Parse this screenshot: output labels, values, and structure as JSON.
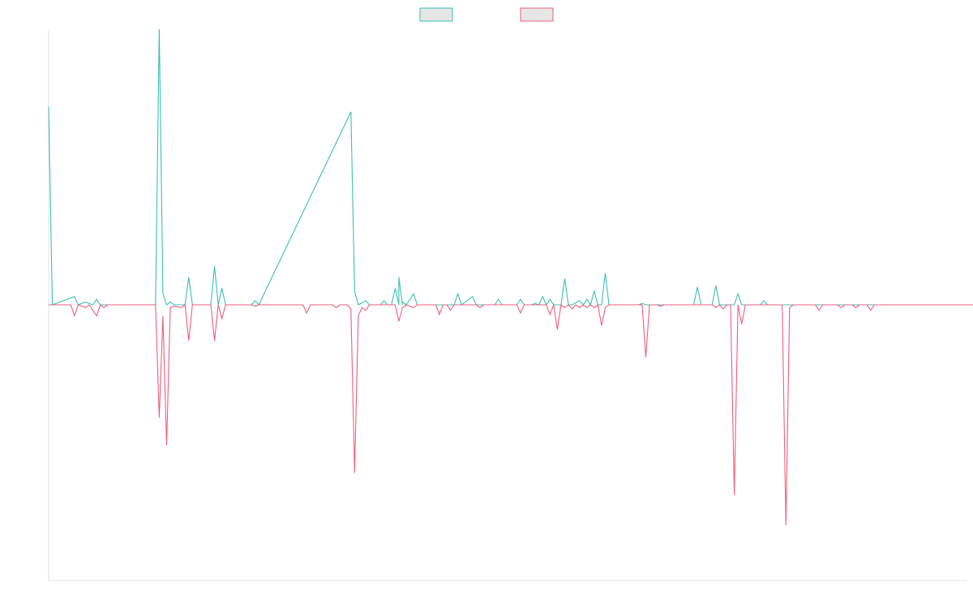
{
  "chart_data": {
    "type": "line",
    "title": "",
    "xlabel": "",
    "ylabel": "",
    "x_count": 250,
    "ylim": [
      -100,
      100
    ],
    "grid": false,
    "legend": "top-center",
    "series": [
      {
        "color": "#3bbfb3",
        "legend_fill": "#e6e6e6",
        "points": [
          [
            0,
            72
          ],
          [
            1,
            0
          ],
          [
            7,
            3
          ],
          [
            8,
            0
          ],
          [
            10,
            1
          ],
          [
            12,
            0
          ],
          [
            13,
            2
          ],
          [
            14,
            0
          ],
          [
            16,
            0
          ],
          [
            29,
            0
          ],
          [
            30,
            100
          ],
          [
            31,
            4
          ],
          [
            32,
            0
          ],
          [
            33,
            1
          ],
          [
            34,
            0
          ],
          [
            37,
            0
          ],
          [
            38,
            10
          ],
          [
            39,
            0
          ],
          [
            44,
            0
          ],
          [
            45,
            14
          ],
          [
            46,
            0
          ],
          [
            47,
            6
          ],
          [
            48,
            0
          ],
          [
            55,
            0
          ],
          [
            56,
            1.5
          ],
          [
            57,
            0
          ],
          [
            90,
            0
          ],
          [
            91,
            1.5
          ],
          [
            92,
            0
          ],
          [
            94,
            6
          ],
          [
            95,
            0
          ],
          [
            96,
            0
          ],
          [
            82,
            70
          ],
          [
            83,
            5
          ],
          [
            84,
            0
          ],
          [
            86,
            1.5
          ],
          [
            87,
            0
          ],
          [
            89,
            0
          ],
          [
            93,
            0
          ],
          [
            95,
            10
          ],
          [
            96,
            1
          ],
          [
            97,
            0
          ],
          [
            99,
            4
          ],
          [
            100,
            0
          ],
          [
            110,
            0
          ],
          [
            111,
            4
          ],
          [
            112,
            0
          ],
          [
            115,
            3
          ],
          [
            116,
            0
          ],
          [
            121,
            0
          ],
          [
            122,
            2
          ],
          [
            123,
            0
          ],
          [
            127,
            0
          ],
          [
            128,
            2
          ],
          [
            129,
            0
          ],
          [
            131,
            0
          ],
          [
            132,
            0.5
          ],
          [
            133,
            0
          ],
          [
            134,
            3
          ],
          [
            135,
            0
          ],
          [
            136,
            2
          ],
          [
            137,
            0
          ],
          [
            139,
            0
          ],
          [
            140,
            9.5
          ],
          [
            141,
            0
          ],
          [
            142,
            0
          ],
          [
            144,
            1.5
          ],
          [
            145,
            0
          ],
          [
            146,
            2
          ],
          [
            147,
            0
          ],
          [
            148,
            5
          ],
          [
            149,
            0
          ],
          [
            150,
            0
          ],
          [
            151,
            11.5
          ],
          [
            152,
            0
          ],
          [
            160,
            0
          ],
          [
            161,
            0.5
          ],
          [
            162,
            0
          ],
          [
            175,
            0
          ],
          [
            176,
            6.5
          ],
          [
            177,
            0
          ],
          [
            178,
            0
          ],
          [
            180,
            0
          ],
          [
            181,
            7
          ],
          [
            182,
            0
          ],
          [
            186,
            0
          ],
          [
            187,
            4
          ],
          [
            188,
            0
          ],
          [
            193,
            0
          ],
          [
            194,
            1.5
          ],
          [
            195,
            0
          ],
          [
            200,
            0
          ],
          [
            201,
            0
          ],
          [
            225,
            0
          ],
          [
            226,
            0
          ],
          [
            227,
            0
          ],
          [
            249,
            0
          ]
        ]
      },
      {
        "color": "#ee5e7d",
        "legend_fill": "#e6e6e6",
        "points": [
          [
            0,
            0
          ],
          [
            6,
            0
          ],
          [
            7,
            -4
          ],
          [
            8,
            0
          ],
          [
            10,
            -1
          ],
          [
            11,
            0
          ],
          [
            13,
            -4
          ],
          [
            14,
            0
          ],
          [
            15,
            -1
          ],
          [
            16,
            0
          ],
          [
            29,
            0
          ],
          [
            30,
            -41
          ],
          [
            31,
            -4
          ],
          [
            32,
            -51
          ],
          [
            33,
            -1
          ],
          [
            34,
            -0.5
          ],
          [
            36,
            -1
          ],
          [
            37,
            0
          ],
          [
            38,
            -13
          ],
          [
            39,
            0
          ],
          [
            44,
            0
          ],
          [
            45,
            -13
          ],
          [
            46,
            0
          ],
          [
            47,
            -5
          ],
          [
            48,
            0
          ],
          [
            55,
            0
          ],
          [
            56,
            -0.5
          ],
          [
            57,
            0
          ],
          [
            69,
            0
          ],
          [
            70,
            -3
          ],
          [
            71,
            0
          ],
          [
            77,
            0
          ],
          [
            78,
            -1
          ],
          [
            79,
            0
          ],
          [
            81,
            0
          ],
          [
            82,
            -1.5
          ],
          [
            83,
            -61
          ],
          [
            84,
            -4
          ],
          [
            85,
            -1
          ],
          [
            86,
            -2
          ],
          [
            87,
            0
          ],
          [
            94,
            0
          ],
          [
            95,
            -6
          ],
          [
            96,
            -1
          ],
          [
            97,
            0
          ],
          [
            99,
            -1
          ],
          [
            100,
            0
          ],
          [
            105,
            0
          ],
          [
            106,
            -3.5
          ],
          [
            107,
            0
          ],
          [
            108,
            0
          ],
          [
            109,
            -2
          ],
          [
            110,
            0
          ],
          [
            116,
            0
          ],
          [
            117,
            -1
          ],
          [
            118,
            0
          ],
          [
            127,
            0
          ],
          [
            128,
            -3
          ],
          [
            129,
            0
          ],
          [
            135,
            0
          ],
          [
            136,
            -3.5
          ],
          [
            137,
            0
          ],
          [
            138,
            -9
          ],
          [
            139,
            0
          ],
          [
            140,
            -1
          ],
          [
            141,
            0
          ],
          [
            142,
            -1.5
          ],
          [
            143,
            0
          ],
          [
            144,
            -1
          ],
          [
            145,
            0
          ],
          [
            146,
            -1
          ],
          [
            147,
            0
          ],
          [
            148,
            -1
          ],
          [
            149,
            0
          ],
          [
            150,
            -7.5
          ],
          [
            151,
            -1
          ],
          [
            152,
            0
          ],
          [
            161,
            0
          ],
          [
            162,
            -19
          ],
          [
            163,
            0
          ],
          [
            165,
            0
          ],
          [
            166,
            -0.5
          ],
          [
            167,
            0
          ],
          [
            180,
            0
          ],
          [
            181,
            -1
          ],
          [
            182,
            0
          ],
          [
            183,
            -1.5
          ],
          [
            184,
            0
          ],
          [
            185,
            0
          ],
          [
            186,
            -69
          ],
          [
            187,
            0
          ],
          [
            188,
            -7
          ],
          [
            189,
            0
          ],
          [
            199,
            0
          ],
          [
            200,
            -80
          ],
          [
            201,
            -1
          ],
          [
            202,
            0
          ],
          [
            208,
            0
          ],
          [
            209,
            -2
          ],
          [
            210,
            0
          ],
          [
            214,
            0
          ],
          [
            215,
            -1
          ],
          [
            216,
            0
          ],
          [
            218,
            0
          ],
          [
            219,
            -1
          ],
          [
            220,
            0
          ],
          [
            222,
            0
          ],
          [
            223,
            -2
          ],
          [
            224,
            0
          ],
          [
            251,
            0
          ]
        ]
      }
    ]
  }
}
